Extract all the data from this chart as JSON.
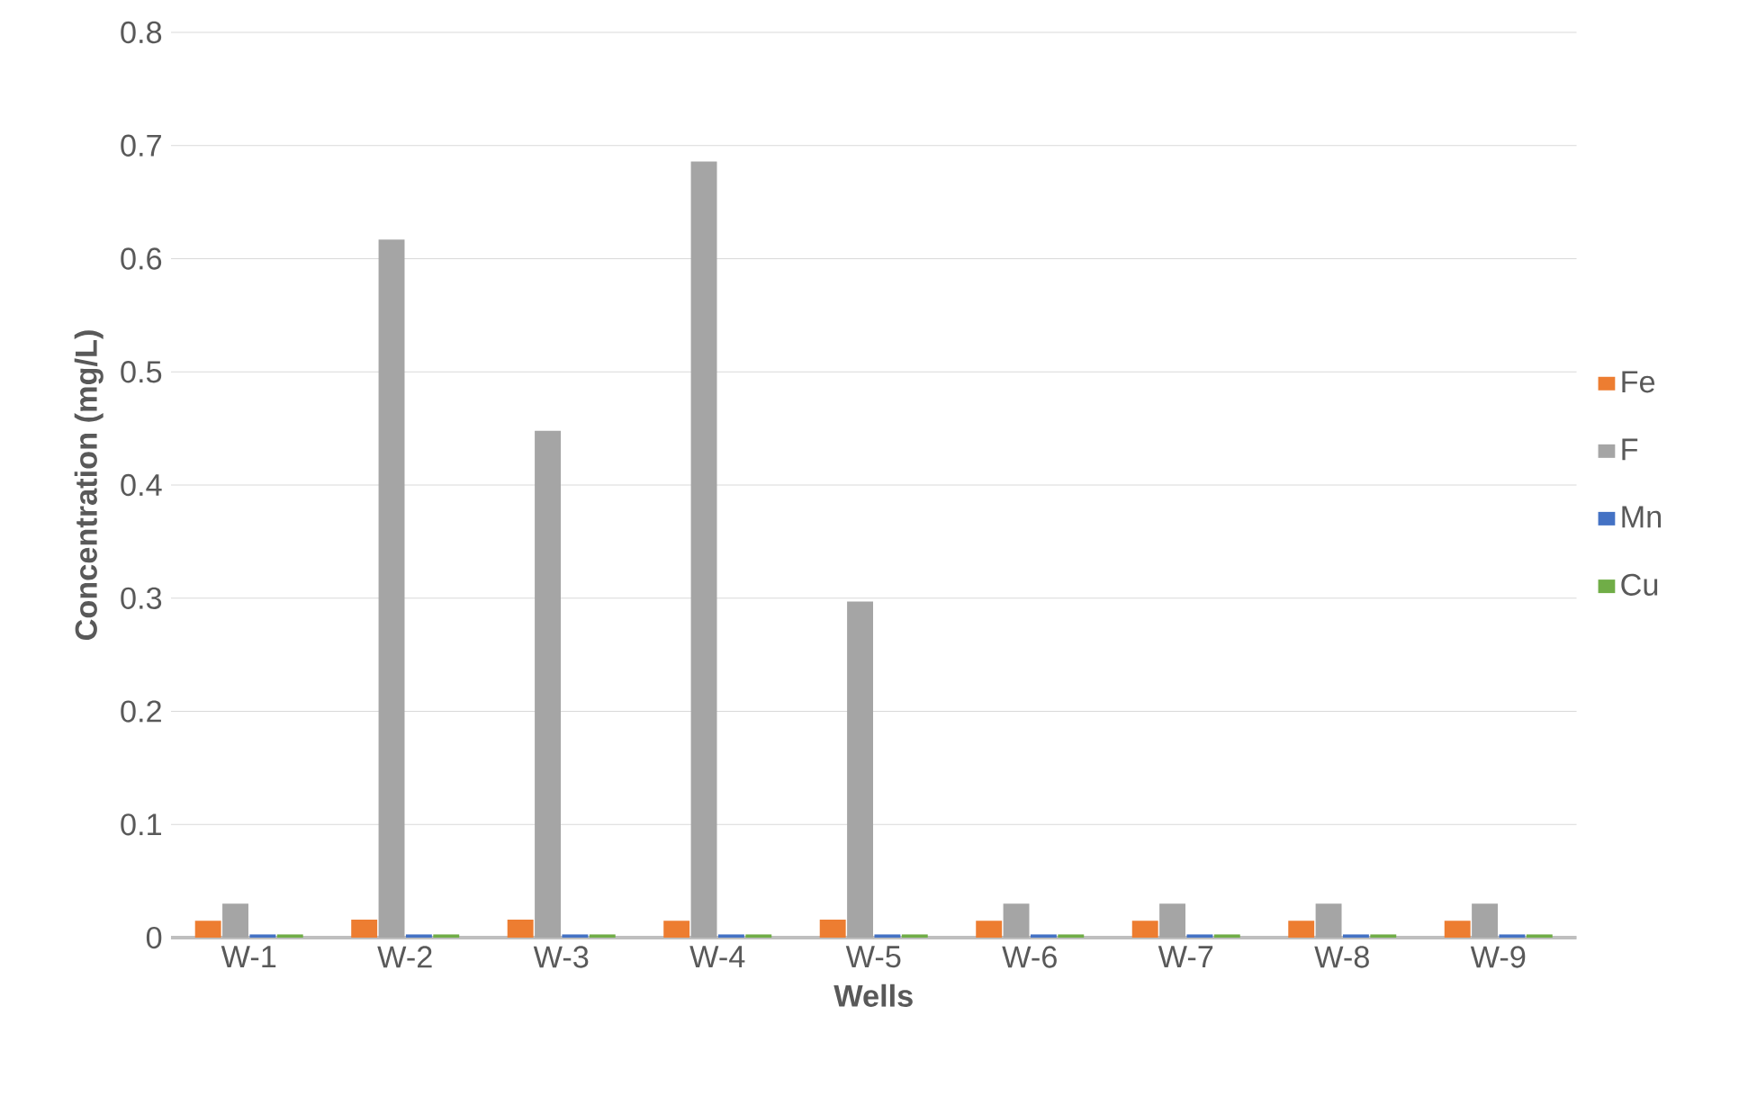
{
  "chart_data": {
    "type": "bar",
    "xlabel": "Wells",
    "ylabel": "Concentration (mg/L)",
    "categories": [
      "W-1",
      "W-2",
      "W-3",
      "W-4",
      "W-5",
      "W-6",
      "W-7",
      "W-8",
      "W-9"
    ],
    "series": [
      {
        "name": "Fe",
        "color": "#ed7d31",
        "values": [
          0.015,
          0.016,
          0.016,
          0.015,
          0.016,
          0.015,
          0.015,
          0.015,
          0.015
        ]
      },
      {
        "name": "F",
        "color": "#a5a5a5",
        "values": [
          0.03,
          0.617,
          0.448,
          0.686,
          0.297,
          0.03,
          0.03,
          0.03,
          0.03
        ]
      },
      {
        "name": "Mn",
        "color": "#4472c4",
        "values": [
          0.003,
          0.003,
          0.003,
          0.003,
          0.003,
          0.003,
          0.003,
          0.003,
          0.003
        ]
      },
      {
        "name": "Cu",
        "color": "#70ad47",
        "values": [
          0.003,
          0.003,
          0.003,
          0.003,
          0.003,
          0.003,
          0.003,
          0.003,
          0.003
        ]
      }
    ],
    "ylim": [
      0,
      0.8
    ],
    "yticks": [
      0,
      0.1,
      0.2,
      0.3,
      0.4,
      0.5,
      0.6,
      0.7,
      0.8
    ],
    "grid": "y",
    "legend": "right"
  }
}
